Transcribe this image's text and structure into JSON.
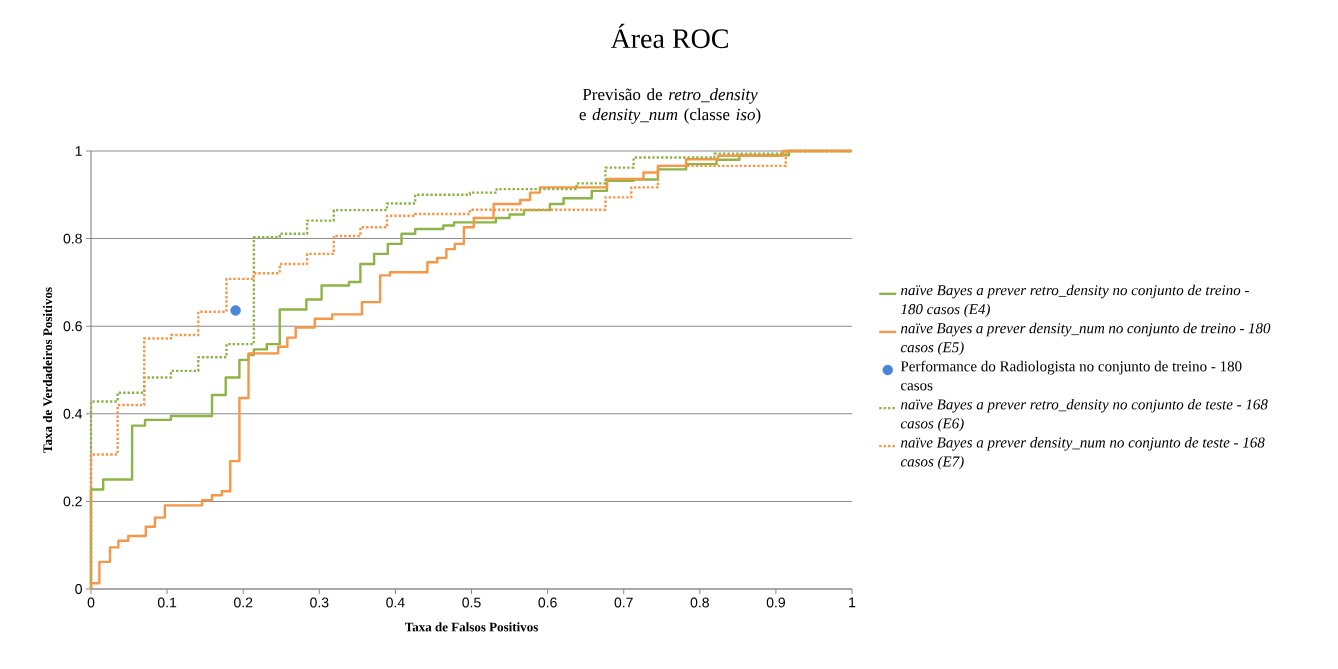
{
  "chart_data": {
    "type": "step",
    "title": "Área ROC",
    "subtitle": "Previsão de *retro_density* e *density_num* (classe *iso*)",
    "xlabel": "Taxa de Falsos Positivos",
    "ylabel": "Taxa de Verdadeiros Positivos",
    "xlim": [
      0,
      1
    ],
    "ylim": [
      0,
      1
    ],
    "xticks": [
      0,
      0.1,
      0.2,
      0.3,
      0.4,
      0.5,
      0.6,
      0.7,
      0.8,
      0.9,
      1
    ],
    "yticks": [
      0,
      0.2,
      0.4,
      0.6,
      0.8,
      1
    ],
    "grid": "y",
    "legend": "right",
    "marker": "none",
    "series": [
      {
        "name": "naïve Bayes a prever retro_density no conjunto de treino - 180 casos (E4)",
        "color": "#8db446",
        "line_style": "solid",
        "x": [
          0,
          0,
          0.016,
          0.054,
          0.071,
          0.105,
          0.159,
          0.177,
          0.195,
          0.207,
          0.214,
          0.231,
          0.248,
          0.283,
          0.303,
          0.339,
          0.354,
          0.372,
          0.39,
          0.408,
          0.426,
          0.463,
          0.477,
          0.532,
          0.55,
          0.569,
          0.603,
          0.621,
          0.658,
          0.678,
          0.713,
          0.745,
          0.782,
          0.822,
          0.852,
          0.917,
          1
        ],
        "values": [
          0,
          0.227,
          0.25,
          0.373,
          0.386,
          0.395,
          0.443,
          0.483,
          0.523,
          0.534,
          0.547,
          0.559,
          0.638,
          0.661,
          0.693,
          0.701,
          0.742,
          0.765,
          0.788,
          0.811,
          0.822,
          0.83,
          0.837,
          0.847,
          0.855,
          0.865,
          0.879,
          0.892,
          0.909,
          0.932,
          0.935,
          0.958,
          0.97,
          0.98,
          0.99,
          1,
          1
        ]
      },
      {
        "name": "naïve Bayes a prever density_num no conjunto de treino - 180 casos (E5)",
        "color": "#f79646",
        "line_style": "solid",
        "x": [
          0,
          0,
          0.011,
          0.025,
          0.036,
          0.049,
          0.072,
          0.084,
          0.097,
          0.146,
          0.159,
          0.172,
          0.183,
          0.195,
          0.207,
          0.246,
          0.258,
          0.269,
          0.294,
          0.317,
          0.356,
          0.38,
          0.393,
          0.442,
          0.455,
          0.467,
          0.478,
          0.49,
          0.503,
          0.529,
          0.564,
          0.577,
          0.59,
          0.678,
          0.726,
          0.745,
          0.782,
          0.824,
          0.909,
          1
        ],
        "values": [
          0,
          0.013,
          0.062,
          0.095,
          0.11,
          0.121,
          0.142,
          0.163,
          0.191,
          0.203,
          0.214,
          0.223,
          0.292,
          0.436,
          0.538,
          0.553,
          0.574,
          0.597,
          0.617,
          0.627,
          0.655,
          0.716,
          0.723,
          0.746,
          0.756,
          0.776,
          0.788,
          0.826,
          0.847,
          0.879,
          0.888,
          0.905,
          0.917,
          0.936,
          0.951,
          0.966,
          0.981,
          0.989,
          1,
          1
        ]
      },
      {
        "name": "Performance do Radiologista no conjunto de treino - 180  casos",
        "type": "scatter",
        "marker": "circle",
        "color": "#4a86d8",
        "x": [
          0.19
        ],
        "values": [
          0.636
        ]
      },
      {
        "name": "naïve Bayes a prever retro_density no conjunto de teste - 168 casos (E6)",
        "color": "#8db446",
        "line_style": "dotted",
        "x": [
          0,
          0,
          0.035,
          0.07,
          0.105,
          0.141,
          0.178,
          0.214,
          0.248,
          0.284,
          0.319,
          0.389,
          0.426,
          0.498,
          0.533,
          0.638,
          0.676,
          0.713,
          0.819,
          0.913,
          1
        ],
        "values": [
          0,
          0.428,
          0.448,
          0.483,
          0.498,
          0.529,
          0.559,
          0.803,
          0.811,
          0.841,
          0.865,
          0.88,
          0.9,
          0.905,
          0.913,
          0.926,
          0.962,
          0.985,
          0.994,
          1,
          1
        ]
      },
      {
        "name": "naïve Bayes a prever density_num no conjunto de teste - 168 casos (E7)",
        "color": "#f79646",
        "line_style": "dotted",
        "x": [
          0,
          0,
          0.035,
          0.07,
          0.105,
          0.141,
          0.178,
          0.214,
          0.248,
          0.284,
          0.319,
          0.354,
          0.389,
          0.426,
          0.498,
          0.676,
          0.71,
          0.745,
          0.913,
          1
        ],
        "values": [
          0,
          0.307,
          0.42,
          0.572,
          0.58,
          0.633,
          0.708,
          0.721,
          0.742,
          0.765,
          0.806,
          0.826,
          0.852,
          0.856,
          0.866,
          0.894,
          0.917,
          0.966,
          1,
          1
        ]
      }
    ]
  }
}
